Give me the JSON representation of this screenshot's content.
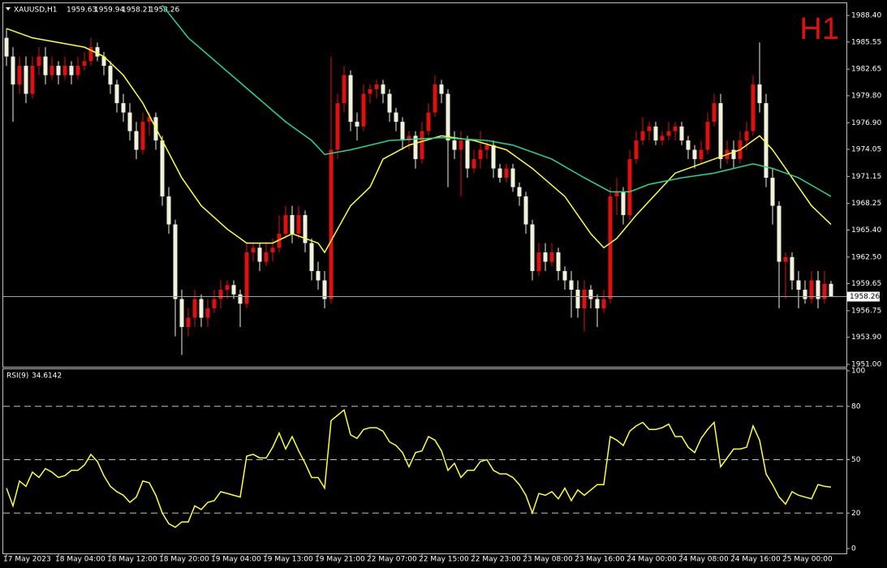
{
  "chart_data": [
    {
      "type": "candlestick",
      "symbol": "XAUUSD,H1",
      "timeframe": "H1",
      "bull_color": "#e01010",
      "bear_color": "#f2f2dc",
      "categories": [
        "17 May 2023",
        null,
        null,
        null,
        null,
        null,
        null,
        null,
        "18 May 04:00",
        null,
        null,
        null,
        null,
        null,
        null,
        null,
        "18 May 12:00",
        null,
        null,
        null,
        null,
        null,
        null,
        null,
        "18 May 20:00",
        null,
        null,
        null,
        null,
        null,
        null,
        null,
        "19 May 04:00",
        null,
        null,
        null,
        null,
        null,
        null,
        null,
        "19 May 13:00",
        null,
        null,
        null,
        null,
        null,
        null,
        null,
        "19 May 21:00",
        null,
        null,
        null,
        null,
        null,
        null,
        null,
        "22 May 07:00",
        null,
        null,
        null,
        null,
        null,
        null,
        null,
        "22 May 15:00",
        null,
        null,
        null,
        null,
        null,
        null,
        null,
        "22 May 23:00",
        null,
        null,
        null,
        null,
        null,
        null,
        null,
        "23 May 08:00",
        null,
        null,
        null,
        null,
        null,
        null,
        null,
        "23 May 16:00",
        null,
        null,
        null,
        null,
        null,
        null,
        null,
        "24 May 00:00",
        null,
        null,
        null,
        null,
        null,
        null,
        null,
        "24 May 08:00",
        null,
        null,
        null,
        null,
        null,
        null,
        null,
        "24 May 16:00",
        null,
        null,
        null,
        null,
        null,
        null,
        null,
        "25 May 00:00",
        null,
        null,
        null,
        null,
        null,
        null,
        null
      ],
      "ohlc": [
        [
          1986,
          1987,
          1983,
          1984
        ],
        [
          1984,
          1985,
          1977,
          1981
        ],
        [
          1981,
          1984,
          1980,
          1983
        ],
        [
          1983,
          1984,
          1979,
          1980
        ],
        [
          1980,
          1984,
          1979.5,
          1983
        ],
        [
          1983,
          1985,
          1982,
          1984
        ],
        [
          1984,
          1985,
          1981,
          1982
        ],
        [
          1982,
          1984,
          1981.5,
          1983
        ],
        [
          1983,
          1983.5,
          1981,
          1982
        ],
        [
          1982,
          1984,
          1981.5,
          1983
        ],
        [
          1983,
          1983.5,
          1981,
          1982
        ],
        [
          1982,
          1984,
          1981.5,
          1983
        ],
        [
          1983,
          1984.5,
          1982.5,
          1983.5
        ],
        [
          1983.5,
          1986,
          1983,
          1985
        ],
        [
          1985,
          1985.5,
          1983.5,
          1984
        ],
        [
          1984,
          1984.5,
          1982,
          1983
        ],
        [
          1983,
          1983.5,
          1980,
          1981
        ],
        [
          1981,
          1981.5,
          1978,
          1979
        ],
        [
          1979,
          1980,
          1977,
          1978
        ],
        [
          1978,
          1979,
          1975,
          1976
        ],
        [
          1976,
          1977,
          1973,
          1974
        ],
        [
          1974,
          1978,
          1973.5,
          1977
        ],
        [
          1977,
          1978,
          1975.5,
          1977.5
        ],
        [
          1977.5,
          1978,
          1974,
          1975
        ],
        [
          1975,
          1975.5,
          1968,
          1969
        ],
        [
          1969,
          1970,
          1965,
          1966
        ],
        [
          1966,
          1966.5,
          1954,
          1958
        ],
        [
          1958,
          1959,
          1952,
          1955
        ],
        [
          1955,
          1957,
          1954,
          1956
        ],
        [
          1956,
          1959,
          1955,
          1958
        ],
        [
          1958,
          1958.5,
          1955,
          1956
        ],
        [
          1956,
          1958,
          1955,
          1957
        ],
        [
          1957,
          1959,
          1956.5,
          1958
        ],
        [
          1958,
          1960,
          1957,
          1959
        ],
        [
          1959,
          1960,
          1958,
          1959.5
        ],
        [
          1959.5,
          1960,
          1958,
          1958.5
        ],
        [
          1958.5,
          1959,
          1955,
          1957.5
        ],
        [
          1957.5,
          1964,
          1957,
          1963
        ],
        [
          1963,
          1964,
          1962,
          1963.5
        ],
        [
          1963.5,
          1964,
          1961,
          1962
        ],
        [
          1962,
          1964,
          1961.5,
          1963
        ],
        [
          1963,
          1964.5,
          1962,
          1963.5
        ],
        [
          1963.5,
          1967,
          1963,
          1965
        ],
        [
          1965,
          1968,
          1964.5,
          1967
        ],
        [
          1967,
          1968,
          1964,
          1965
        ],
        [
          1965,
          1968,
          1964.5,
          1967
        ],
        [
          1967,
          1967.5,
          1963,
          1964
        ],
        [
          1964,
          1964.5,
          1960,
          1961
        ],
        [
          1961,
          1962,
          1959,
          1960
        ],
        [
          1960,
          1961,
          1957,
          1958
        ],
        [
          1958,
          1984,
          1957.5,
          1974
        ],
        [
          1974,
          1980,
          1973,
          1979
        ],
        [
          1979,
          1983,
          1978,
          1982
        ],
        [
          1982,
          1982.5,
          1976,
          1977
        ],
        [
          1977,
          1978,
          1975,
          1976.5
        ],
        [
          1976.5,
          1981,
          1976,
          1980
        ],
        [
          1980,
          1981,
          1979,
          1980.5
        ],
        [
          1980.5,
          1981.5,
          1979.5,
          1981
        ],
        [
          1981,
          1981.5,
          1979,
          1980
        ],
        [
          1980,
          1980.5,
          1977,
          1978
        ],
        [
          1978,
          1978.5,
          1976,
          1977
        ],
        [
          1977,
          1977.5,
          1974,
          1975
        ],
        [
          1975,
          1976,
          1974,
          1975.5
        ],
        [
          1975.5,
          1976,
          1972,
          1973
        ],
        [
          1973,
          1977,
          1972.5,
          1976
        ],
        [
          1976,
          1979,
          1975.5,
          1978
        ],
        [
          1978,
          1982,
          1977.5,
          1981
        ],
        [
          1981,
          1981.5,
          1979,
          1980
        ],
        [
          1980,
          1980.5,
          1970,
          1975
        ],
        [
          1975,
          1976,
          1973,
          1974
        ],
        [
          1974,
          1976,
          1969,
          1975
        ],
        [
          1975,
          1975.5,
          1971,
          1972
        ],
        [
          1972,
          1974,
          1971.5,
          1973
        ],
        [
          1973,
          1976,
          1972,
          1974
        ],
        [
          1974,
          1975,
          1973,
          1974.5
        ],
        [
          1974.5,
          1975,
          1971,
          1972
        ],
        [
          1972,
          1972.5,
          1970.5,
          1971
        ],
        [
          1971,
          1972.5,
          1970.5,
          1972
        ],
        [
          1972,
          1972.5,
          1969.5,
          1970
        ],
        [
          1970,
          1970.5,
          1968,
          1969
        ],
        [
          1969,
          1969.5,
          1965,
          1966
        ],
        [
          1966,
          1966.5,
          1960,
          1961
        ],
        [
          1961,
          1964,
          1960.5,
          1963
        ],
        [
          1963,
          1964,
          1961,
          1962
        ],
        [
          1962,
          1964,
          1961.5,
          1963
        ],
        [
          1963,
          1963.5,
          1960,
          1961
        ],
        [
          1961,
          1961.5,
          1959,
          1960
        ],
        [
          1960,
          1961,
          1956,
          1959
        ],
        [
          1959,
          1960,
          1956,
          1957
        ],
        [
          1957,
          1960,
          1954.5,
          1959
        ],
        [
          1959,
          1959.5,
          1957,
          1958
        ],
        [
          1958,
          1958.5,
          1955,
          1957
        ],
        [
          1957,
          1959,
          1956.5,
          1958
        ],
        [
          1958,
          1970,
          1957.5,
          1969
        ],
        [
          1969,
          1971,
          1967,
          1969.5
        ],
        [
          1969.5,
          1970,
          1966,
          1967
        ],
        [
          1967,
          1974,
          1966.5,
          1973
        ],
        [
          1973,
          1976,
          1972.5,
          1975
        ],
        [
          1975,
          1977.5,
          1974.5,
          1976
        ],
        [
          1976,
          1977,
          1975,
          1976.5
        ],
        [
          1976.5,
          1977,
          1974.5,
          1975
        ],
        [
          1975,
          1976,
          1974.5,
          1975.5
        ],
        [
          1975.5,
          1977,
          1975,
          1976
        ],
        [
          1976,
          1977,
          1975,
          1976.5
        ],
        [
          1976.5,
          1977,
          1974.5,
          1975
        ],
        [
          1975,
          1975.5,
          1973,
          1974
        ],
        [
          1974,
          1974.5,
          1972,
          1973
        ],
        [
          1973,
          1975,
          1972.5,
          1974
        ],
        [
          1974,
          1978,
          1973.5,
          1977
        ],
        [
          1977,
          1980,
          1976.5,
          1979
        ],
        [
          1979,
          1980,
          1972,
          1973
        ],
        [
          1973,
          1975,
          1972.5,
          1974
        ],
        [
          1974,
          1975,
          1972,
          1973
        ],
        [
          1973,
          1976,
          1972.5,
          1975
        ],
        [
          1975,
          1977,
          1974,
          1976
        ],
        [
          1976,
          1982,
          1975.5,
          1981
        ],
        [
          1981,
          1985.5,
          1978,
          1979
        ],
        [
          1979,
          1980,
          1970,
          1971
        ],
        [
          1971,
          1972,
          1966,
          1968
        ],
        [
          1968,
          1968.5,
          1957,
          1962
        ],
        [
          1962,
          1963,
          1958,
          1962.5
        ],
        [
          1962.5,
          1963,
          1959,
          1960
        ],
        [
          1960,
          1961,
          1957,
          1959
        ],
        [
          1959,
          1960,
          1957.5,
          1958
        ],
        [
          1958,
          1961,
          1957.5,
          1960
        ],
        [
          1960,
          1961,
          1957,
          1958
        ],
        [
          1958,
          1961,
          1957.5,
          1959.63
        ],
        [
          1959.63,
          1959.94,
          1958.21,
          1958.26
        ]
      ],
      "lines": [
        {
          "color": "#ffff33",
          "x": [
            0,
            4,
            12,
            15,
            18,
            21,
            24,
            27,
            30,
            34,
            37,
            41,
            44,
            48,
            49,
            51,
            53,
            56,
            58,
            62,
            67,
            72,
            77,
            81,
            86,
            90,
            92,
            94,
            97,
            101,
            103,
            107,
            109,
            113,
            116,
            118,
            122,
            124,
            127
          ],
          "values": [
            1987,
            1986,
            1985,
            1984,
            1982,
            1979,
            1975,
            1971,
            1968,
            1965.5,
            1964,
            1964,
            1965,
            1964,
            1963,
            1965.5,
            1968,
            1970,
            1973,
            1974.5,
            1975.5,
            1975,
            1974,
            1972,
            1969,
            1965,
            1963.5,
            1964.5,
            1967,
            1970,
            1971.5,
            1972.5,
            1973,
            1974,
            1975.5,
            1974,
            1970,
            1968,
            1966
          ]
        },
        {
          "color": "#20d890",
          "x": [
            24,
            28,
            33,
            38,
            43,
            47,
            49,
            53,
            59,
            67,
            74,
            78,
            84,
            89,
            93,
            96,
            99,
            104,
            109,
            115,
            118,
            122,
            127
          ],
          "values": [
            1989.5,
            1986,
            1983,
            1980,
            1977,
            1975,
            1973.5,
            1974,
            1975,
            1975.3,
            1975,
            1974.5,
            1973,
            1971,
            1969.5,
            1969.5,
            1970.3,
            1971,
            1971.5,
            1972.5,
            1972,
            1971,
            1969
          ]
        }
      ],
      "ylim": [
        1950.74,
        1989.71
      ],
      "yticks": [
        {
          "value": 1951,
          "label": "1951.00"
        },
        {
          "value": 1953.9,
          "label": "1953.90"
        },
        {
          "value": 1956.75,
          "label": "1956.75"
        },
        {
          "value": 1959.65,
          "label": "1959.65"
        },
        {
          "value": 1962.5,
          "label": "1962.50"
        },
        {
          "value": 1965.4,
          "label": "1965.40"
        },
        {
          "value": 1968.25,
          "label": "1968.25"
        },
        {
          "value": 1971.15,
          "label": "1971.15"
        },
        {
          "value": 1974.05,
          "label": "1974.05"
        },
        {
          "value": 1976.9,
          "label": "1976.90"
        },
        {
          "value": 1979.8,
          "label": "1979.80"
        },
        {
          "value": 1982.65,
          "label": "1982.65"
        },
        {
          "value": 1985.55,
          "label": "1985.55"
        },
        {
          "value": 1988.4,
          "label": "1988.40"
        }
      ]
    },
    {
      "type": "line",
      "name": "RSI(9)",
      "last_value": 34.6142,
      "color": "#ffff33",
      "values": [
        34,
        24,
        38,
        35,
        43,
        40,
        45,
        43,
        40,
        41,
        44,
        44,
        47,
        53,
        49,
        41,
        35,
        32,
        30,
        26,
        29,
        38,
        37,
        30,
        20,
        14,
        12,
        15,
        15,
        24,
        22,
        26,
        27,
        32,
        31,
        30,
        29,
        52,
        53,
        51,
        51,
        57,
        65,
        56,
        63,
        55,
        48,
        40,
        40,
        34,
        72,
        75,
        78,
        64,
        62,
        67,
        68,
        68,
        66,
        60,
        58,
        54,
        46,
        54,
        55,
        63,
        61,
        55,
        44,
        48,
        40,
        44,
        44,
        49,
        50,
        44,
        42,
        42,
        40,
        36,
        30,
        20,
        31,
        30,
        32,
        28,
        34,
        27,
        33,
        30,
        33,
        36,
        36,
        63,
        61,
        58,
        66,
        69,
        71,
        67,
        67,
        68,
        70,
        63,
        63,
        57,
        54,
        62,
        67,
        71,
        46,
        51,
        56,
        56,
        57,
        69,
        61,
        42,
        36,
        29,
        25,
        32,
        30,
        29,
        28,
        36,
        35,
        34.6142
      ],
      "ylim": [
        -2.7,
        100.9
      ],
      "yticks": [
        0,
        20,
        50,
        80,
        100
      ],
      "levels": [
        20,
        50,
        80
      ]
    }
  ]
}
